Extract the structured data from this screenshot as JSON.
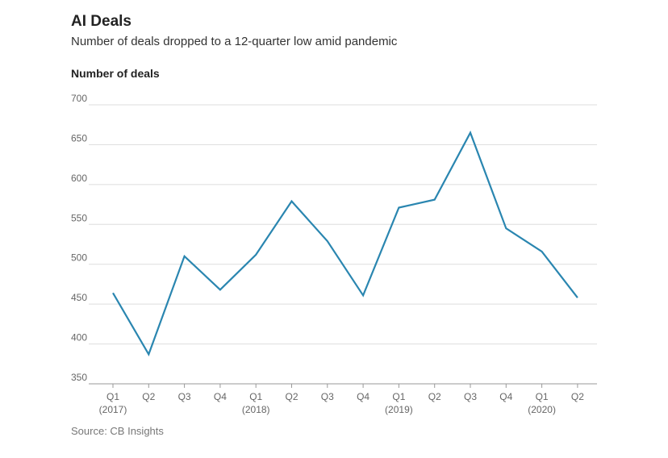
{
  "title": "AI Deals",
  "subtitle": "Number of deals dropped to a 12-quarter low amid pandemic",
  "source": "Source: CB Insights",
  "colors": {
    "line": "#2a86b0",
    "grid": "#dddddd",
    "axis": "#999999"
  },
  "chart_data": {
    "type": "line",
    "ylabel": "Number of deals",
    "ylim": [
      350,
      700
    ],
    "yticks": [
      350,
      400,
      450,
      500,
      550,
      600,
      650,
      700
    ],
    "grid": true,
    "categories": [
      {
        "q": "Q1",
        "year": "(2017)"
      },
      {
        "q": "Q2",
        "year": ""
      },
      {
        "q": "Q3",
        "year": ""
      },
      {
        "q": "Q4",
        "year": ""
      },
      {
        "q": "Q1",
        "year": "(2018)"
      },
      {
        "q": "Q2",
        "year": ""
      },
      {
        "q": "Q3",
        "year": ""
      },
      {
        "q": "Q4",
        "year": ""
      },
      {
        "q": "Q1",
        "year": "(2019)"
      },
      {
        "q": "Q2",
        "year": ""
      },
      {
        "q": "Q3",
        "year": ""
      },
      {
        "q": "Q4",
        "year": ""
      },
      {
        "q": "Q1",
        "year": "(2020)"
      },
      {
        "q": "Q2",
        "year": ""
      }
    ],
    "series": [
      {
        "values": [
          464,
          387,
          510,
          468,
          512,
          579,
          529,
          461,
          571,
          581,
          665,
          545,
          516,
          458
        ]
      }
    ]
  }
}
